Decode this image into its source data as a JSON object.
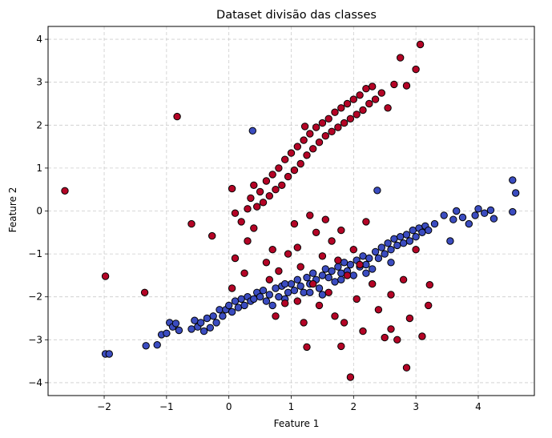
{
  "chart_data": {
    "type": "scatter",
    "title": "Dataset divisão das classes",
    "xlabel": "Feature 1",
    "ylabel": "Feature 2",
    "xlim": [
      -2.9,
      4.9
    ],
    "ylim": [
      -4.3,
      4.3
    ],
    "xticks": [
      -2,
      -1,
      0,
      1,
      2,
      3,
      4
    ],
    "yticks": [
      -4,
      -3,
      -2,
      -1,
      0,
      1,
      2,
      3,
      4
    ],
    "grid": true,
    "grid_style": "dashed",
    "legend": "none",
    "colors": {
      "class_0": "#3b4cc0",
      "class_1": "#b40426",
      "marker_edge": "#000000",
      "grid": "#cccccc"
    },
    "series": [
      {
        "color": "#3b4cc0",
        "points": [
          [
            -1.98,
            -3.33
          ],
          [
            -1.92,
            -3.33
          ],
          [
            -1.33,
            -3.14
          ],
          [
            -1.15,
            -3.12
          ],
          [
            -1.08,
            -2.88
          ],
          [
            -1.0,
            -2.85
          ],
          [
            -0.95,
            -2.6
          ],
          [
            -0.9,
            -2.7
          ],
          [
            -0.85,
            -2.62
          ],
          [
            -0.8,
            -2.78
          ],
          [
            -0.6,
            -2.75
          ],
          [
            -0.55,
            -2.55
          ],
          [
            -0.5,
            -2.7
          ],
          [
            -0.45,
            -2.6
          ],
          [
            -0.4,
            -2.8
          ],
          [
            -0.35,
            -2.5
          ],
          [
            -0.3,
            -2.72
          ],
          [
            -0.25,
            -2.45
          ],
          [
            -0.2,
            -2.6
          ],
          [
            -0.15,
            -2.3
          ],
          [
            -0.1,
            -2.45
          ],
          [
            -0.05,
            -2.3
          ],
          [
            0.0,
            -2.2
          ],
          [
            0.05,
            -2.35
          ],
          [
            0.1,
            -2.1
          ],
          [
            0.15,
            -2.25
          ],
          [
            0.2,
            -2.05
          ],
          [
            0.25,
            -2.2
          ],
          [
            0.3,
            -2.0
          ],
          [
            0.35,
            -2.1
          ],
          [
            0.4,
            -2.05
          ],
          [
            0.45,
            -1.9
          ],
          [
            0.5,
            -2.0
          ],
          [
            0.55,
            -1.85
          ],
          [
            0.6,
            -2.1
          ],
          [
            0.65,
            -1.95
          ],
          [
            0.7,
            -2.2
          ],
          [
            0.75,
            -1.8
          ],
          [
            0.8,
            -2.0
          ],
          [
            0.85,
            -1.75
          ],
          [
            0.9,
            -2.05
          ],
          [
            0.95,
            -1.9
          ],
          [
            1.0,
            -1.7
          ],
          [
            1.05,
            -1.85
          ],
          [
            1.1,
            -1.6
          ],
          [
            1.15,
            -1.75
          ],
          [
            1.2,
            -1.9
          ],
          [
            1.25,
            -1.55
          ],
          [
            1.3,
            -1.7
          ],
          [
            1.35,
            -1.45
          ],
          [
            1.4,
            -1.6
          ],
          [
            1.45,
            -1.8
          ],
          [
            1.5,
            -1.5
          ],
          [
            1.55,
            -1.35
          ],
          [
            1.6,
            -1.55
          ],
          [
            1.65,
            -1.4
          ],
          [
            1.7,
            -1.65
          ],
          [
            1.75,
            -1.3
          ],
          [
            1.8,
            -1.45
          ],
          [
            1.85,
            -1.2
          ],
          [
            1.9,
            -1.4
          ],
          [
            1.95,
            -1.25
          ],
          [
            2.0,
            -1.5
          ],
          [
            2.05,
            -1.15
          ],
          [
            2.1,
            -1.3
          ],
          [
            2.15,
            -1.05
          ],
          [
            2.2,
            -1.25
          ],
          [
            2.25,
            -1.1
          ],
          [
            2.3,
            -1.35
          ],
          [
            2.35,
            -0.95
          ],
          [
            2.4,
            -1.1
          ],
          [
            2.45,
            -0.85
          ],
          [
            2.5,
            -1.0
          ],
          [
            2.55,
            -0.75
          ],
          [
            2.6,
            -0.9
          ],
          [
            2.65,
            -0.65
          ],
          [
            2.7,
            -0.8
          ],
          [
            2.75,
            -0.6
          ],
          [
            2.8,
            -0.75
          ],
          [
            2.85,
            -0.55
          ],
          [
            2.9,
            -0.7
          ],
          [
            2.95,
            -0.45
          ],
          [
            3.0,
            -0.6
          ],
          [
            3.05,
            -0.4
          ],
          [
            3.1,
            -0.5
          ],
          [
            3.15,
            -0.35
          ],
          [
            3.2,
            -0.45
          ],
          [
            3.3,
            -0.3
          ],
          [
            3.45,
            -0.1
          ],
          [
            3.55,
            -0.7
          ],
          [
            3.6,
            -0.2
          ],
          [
            3.65,
            0.0
          ],
          [
            3.75,
            -0.15
          ],
          [
            3.85,
            -0.3
          ],
          [
            3.95,
            -0.1
          ],
          [
            4.0,
            0.05
          ],
          [
            4.1,
            -0.05
          ],
          [
            4.2,
            0.02
          ],
          [
            4.25,
            -0.18
          ],
          [
            4.55,
            0.72
          ],
          [
            4.6,
            0.42
          ],
          [
            4.55,
            -0.02
          ],
          [
            0.38,
            1.87
          ],
          [
            2.38,
            0.48
          ],
          [
            1.5,
            -1.95
          ],
          [
            1.8,
            -1.6
          ],
          [
            2.2,
            -1.45
          ],
          [
            1.3,
            -1.9
          ],
          [
            0.9,
            -1.7
          ],
          [
            2.6,
            -1.2
          ]
        ]
      },
      {
        "color": "#b40426",
        "points": [
          [
            -2.63,
            0.47
          ],
          [
            -0.83,
            2.2
          ],
          [
            -1.98,
            -1.52
          ],
          [
            -1.35,
            -1.9
          ],
          [
            -0.6,
            -0.3
          ],
          [
            -0.27,
            -0.58
          ],
          [
            0.05,
            0.52
          ],
          [
            0.1,
            -0.05
          ],
          [
            0.1,
            -1.1
          ],
          [
            0.2,
            -0.25
          ],
          [
            0.3,
            0.05
          ],
          [
            0.35,
            0.3
          ],
          [
            0.4,
            0.6
          ],
          [
            0.45,
            0.1
          ],
          [
            0.5,
            0.45
          ],
          [
            0.55,
            0.2
          ],
          [
            0.6,
            0.7
          ],
          [
            0.65,
            0.35
          ],
          [
            0.7,
            0.85
          ],
          [
            0.75,
            0.5
          ],
          [
            0.8,
            1.0
          ],
          [
            0.85,
            0.6
          ],
          [
            0.9,
            1.2
          ],
          [
            0.95,
            0.8
          ],
          [
            1.0,
            1.35
          ],
          [
            1.05,
            0.95
          ],
          [
            1.1,
            1.5
          ],
          [
            1.15,
            1.1
          ],
          [
            1.2,
            1.65
          ],
          [
            1.25,
            1.3
          ],
          [
            1.3,
            1.8
          ],
          [
            1.35,
            1.45
          ],
          [
            1.4,
            1.95
          ],
          [
            1.45,
            1.6
          ],
          [
            1.5,
            2.05
          ],
          [
            1.55,
            1.75
          ],
          [
            1.6,
            2.15
          ],
          [
            1.65,
            1.85
          ],
          [
            1.7,
            2.3
          ],
          [
            1.75,
            1.95
          ],
          [
            1.8,
            2.4
          ],
          [
            1.85,
            2.05
          ],
          [
            1.9,
            2.5
          ],
          [
            1.95,
            2.15
          ],
          [
            2.0,
            2.6
          ],
          [
            2.05,
            2.25
          ],
          [
            2.1,
            2.7
          ],
          [
            2.15,
            2.35
          ],
          [
            2.2,
            2.85
          ],
          [
            2.25,
            2.5
          ],
          [
            2.3,
            2.9
          ],
          [
            2.35,
            2.6
          ],
          [
            2.45,
            2.75
          ],
          [
            2.55,
            2.4
          ],
          [
            2.65,
            2.95
          ],
          [
            2.75,
            3.57
          ],
          [
            2.85,
            2.92
          ],
          [
            3.0,
            3.3
          ],
          [
            3.07,
            3.88
          ],
          [
            1.22,
            1.97
          ],
          [
            0.3,
            -0.7
          ],
          [
            0.4,
            -0.4
          ],
          [
            0.6,
            -1.2
          ],
          [
            0.65,
            -1.6
          ],
          [
            0.7,
            -0.9
          ],
          [
            0.75,
            -2.45
          ],
          [
            0.8,
            -1.4
          ],
          [
            0.9,
            -2.15
          ],
          [
            0.95,
            -1.0
          ],
          [
            1.05,
            -0.3
          ],
          [
            1.1,
            -0.85
          ],
          [
            1.15,
            -1.3
          ],
          [
            1.2,
            -2.6
          ],
          [
            1.25,
            -3.17
          ],
          [
            1.3,
            -0.1
          ],
          [
            1.35,
            -1.7
          ],
          [
            1.4,
            -0.5
          ],
          [
            1.45,
            -2.2
          ],
          [
            1.5,
            -1.05
          ],
          [
            1.55,
            -0.2
          ],
          [
            1.6,
            -1.9
          ],
          [
            1.65,
            -0.7
          ],
          [
            1.7,
            -2.45
          ],
          [
            1.75,
            -1.15
          ],
          [
            1.8,
            -0.45
          ],
          [
            1.85,
            -2.6
          ],
          [
            1.9,
            -1.5
          ],
          [
            1.95,
            -3.87
          ],
          [
            2.0,
            -0.9
          ],
          [
            2.05,
            -2.05
          ],
          [
            2.1,
            -1.25
          ],
          [
            2.15,
            -2.8
          ],
          [
            2.2,
            -0.25
          ],
          [
            2.3,
            -1.7
          ],
          [
            2.4,
            -2.3
          ],
          [
            2.5,
            -2.95
          ],
          [
            2.6,
            -2.75
          ],
          [
            2.7,
            -3.0
          ],
          [
            2.8,
            -1.6
          ],
          [
            2.85,
            -3.65
          ],
          [
            2.9,
            -2.5
          ],
          [
            3.0,
            -0.9
          ],
          [
            3.1,
            -2.92
          ],
          [
            3.2,
            -2.2
          ],
          [
            3.22,
            -1.72
          ],
          [
            1.8,
            -3.15
          ],
          [
            0.05,
            -1.8
          ],
          [
            0.25,
            -1.45
          ],
          [
            1.1,
            -2.1
          ],
          [
            2.6,
            -1.95
          ]
        ]
      }
    ]
  }
}
